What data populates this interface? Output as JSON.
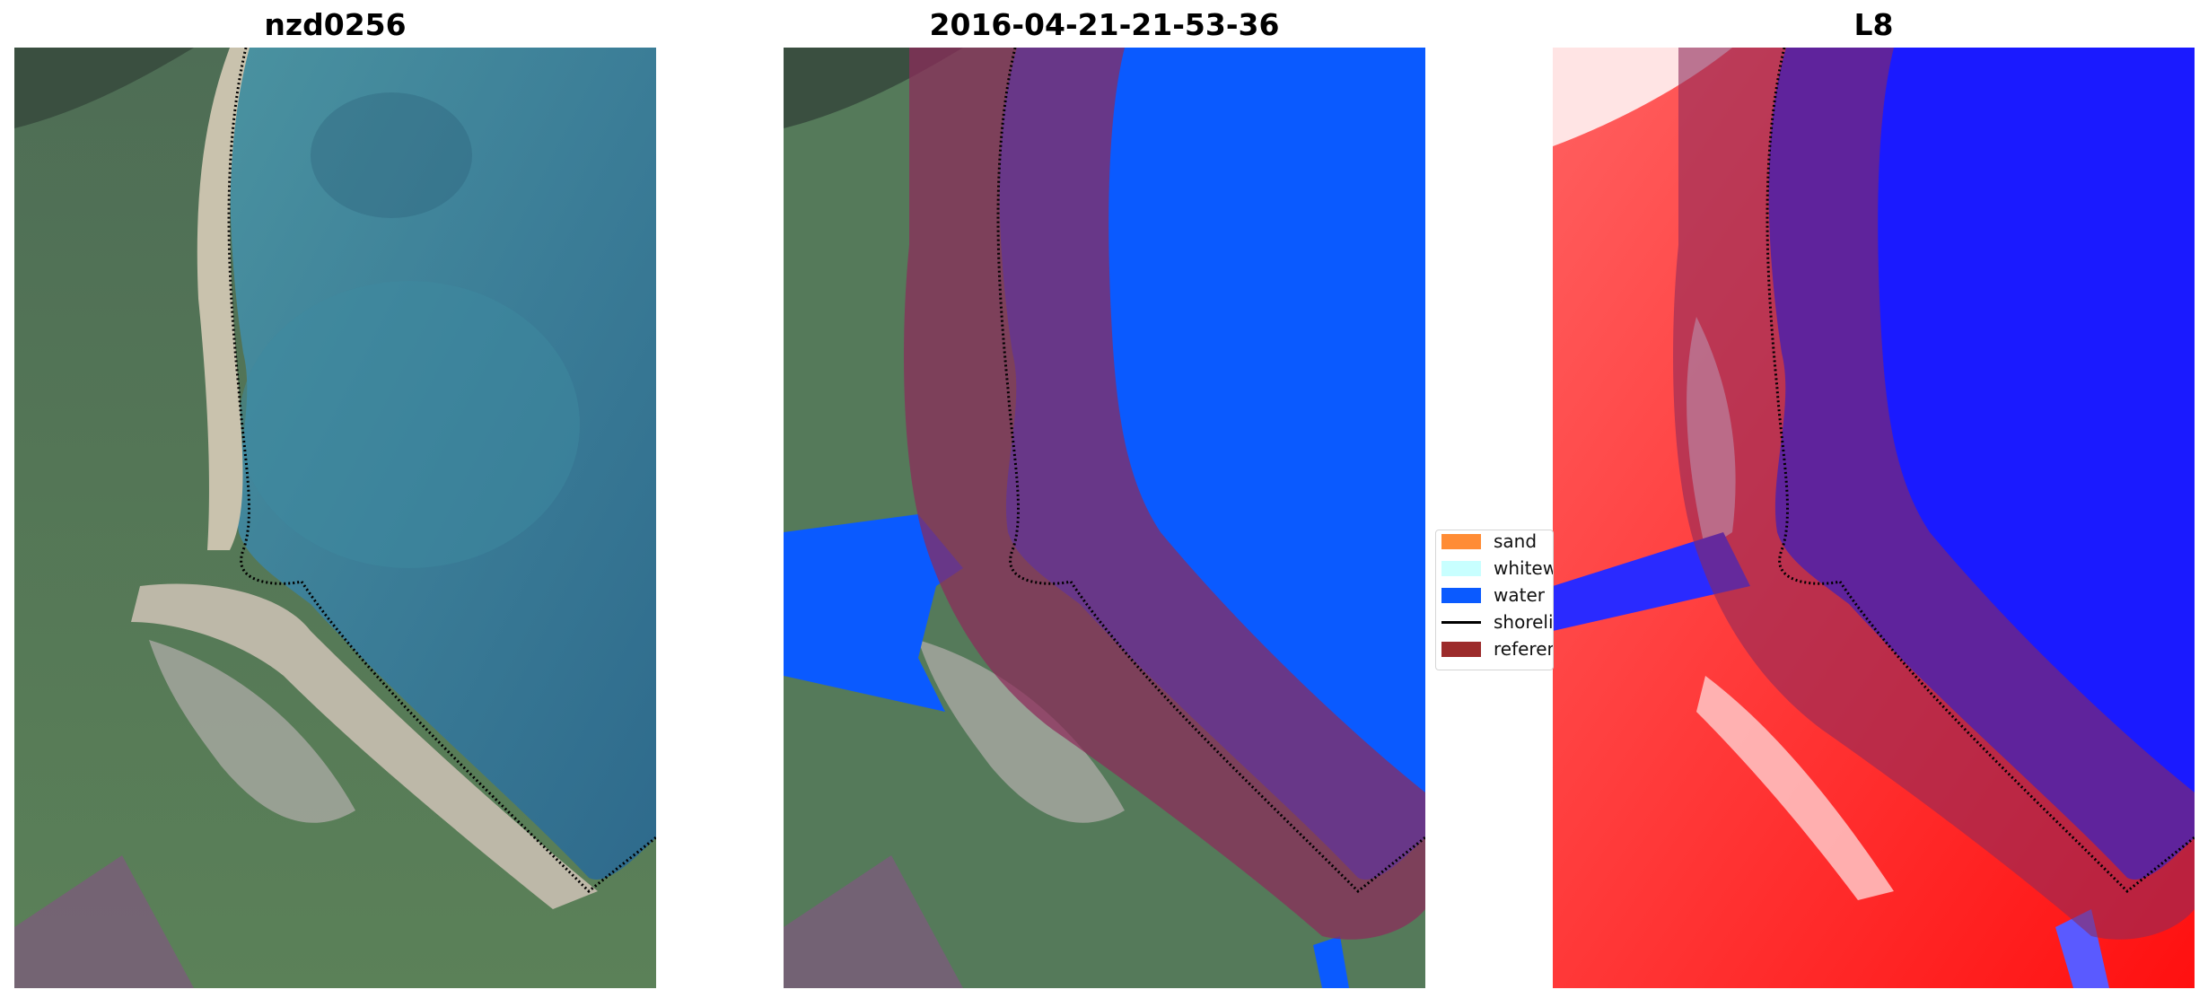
{
  "panels": [
    {
      "title": "nzd0256"
    },
    {
      "title": "2016-04-21-21-53-36"
    },
    {
      "title": "L8"
    }
  ],
  "legend": {
    "items": [
      {
        "label": "sand",
        "color": "#FF8C35"
      },
      {
        "label": "whitewater",
        "color": "#C8FFFF"
      },
      {
        "label": "water",
        "color": "#0A5AFF"
      },
      {
        "label": "shoreline",
        "color": "#000000"
      },
      {
        "label": "reference",
        "color": "#9C2B2B"
      }
    ]
  },
  "colors": {
    "ocean": "#3d7f96",
    "land": "#4f7a58",
    "beach": "#cfc9b8",
    "reference_overlay": "#8d2a5a",
    "index_water": "#1a1aff",
    "index_land": "#ff2020"
  }
}
